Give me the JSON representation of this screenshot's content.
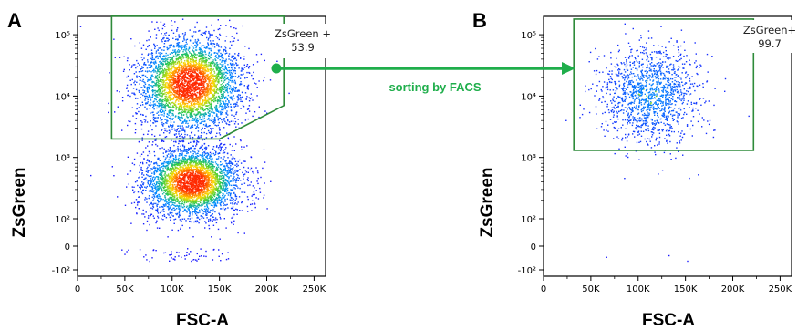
{
  "colors": {
    "gate": "#2e8b3a",
    "arrow": "#1fae4b",
    "density_low": "#1a1aff",
    "density_mid": "#2ecc40",
    "density_high": "#ff2a00"
  },
  "annotation": {
    "text": "sorting by FACS"
  },
  "chart_data": [
    {
      "type": "scatter",
      "panel_label": "A",
      "xlabel": "FSC-A",
      "ylabel": "ZsGreen",
      "x_scale": "linear",
      "y_scale": "biexponential",
      "x_ticks": [
        "0",
        "50K",
        "100K",
        "150K",
        "200K",
        "250K"
      ],
      "x_tick_values": [
        0,
        50000,
        100000,
        150000,
        200000,
        250000
      ],
      "y_ticks": [
        "-10²",
        "0",
        "10²",
        "10³",
        "10⁴",
        "10⁵"
      ],
      "y_tick_values": [
        -100,
        0,
        100,
        1000,
        10000,
        100000
      ],
      "xlim": [
        0,
        262144
      ],
      "ylim": [
        -300,
        262144
      ],
      "populations": [
        {
          "center_x": 118000,
          "center_y": 16000,
          "density": "high"
        },
        {
          "center_x": 120000,
          "center_y": 400,
          "density": "high"
        }
      ],
      "gate": {
        "name": "ZsGreen +",
        "percent": "53.9",
        "vertices": [
          [
            36000,
            200000
          ],
          [
            218000,
            200000
          ],
          [
            218000,
            7000
          ],
          [
            150000,
            2000
          ],
          [
            36000,
            2000
          ]
        ]
      }
    },
    {
      "type": "scatter",
      "panel_label": "B",
      "xlabel": "FSC-A",
      "ylabel": "ZsGreen",
      "x_scale": "linear",
      "y_scale": "biexponential",
      "x_ticks": [
        "0",
        "50K",
        "100K",
        "150K",
        "200K",
        "250K"
      ],
      "x_tick_values": [
        0,
        50000,
        100000,
        150000,
        200000,
        250000
      ],
      "y_ticks": [
        "-10²",
        "0",
        "10²",
        "10³",
        "10⁴",
        "10⁵"
      ],
      "y_tick_values": [
        -100,
        0,
        100,
        1000,
        10000,
        100000
      ],
      "xlim": [
        0,
        262144
      ],
      "ylim": [
        -300,
        262144
      ],
      "populations": [
        {
          "center_x": 113000,
          "center_y": 11000,
          "density": "low"
        }
      ],
      "gate": {
        "name": "ZsGreen+",
        "percent": "99.7",
        "vertices": [
          [
            32000,
            180000
          ],
          [
            222000,
            180000
          ],
          [
            222000,
            1300
          ],
          [
            32000,
            1300
          ]
        ]
      }
    }
  ]
}
